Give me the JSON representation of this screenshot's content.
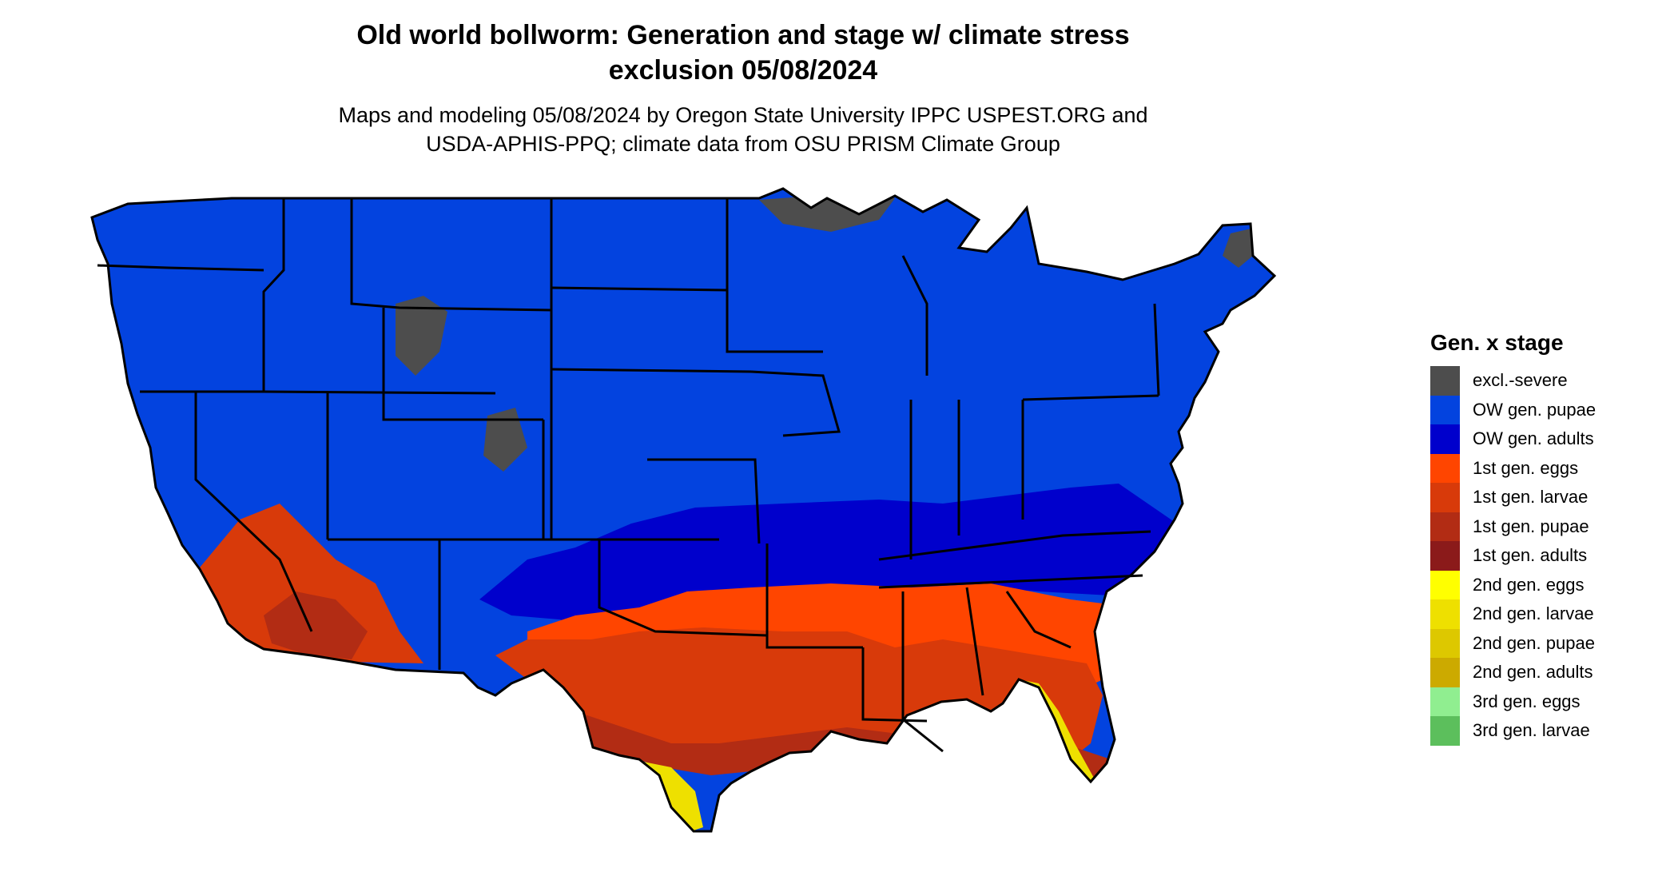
{
  "title": {
    "line1": "Old world bollworm: Generation and stage w/ climate stress",
    "line2": "exclusion 05/08/2024"
  },
  "subtitle": {
    "line1": "Maps and modeling 05/08/2024 by Oregon State University IPPC USPEST.ORG and",
    "line2": "USDA-APHIS-PPQ; climate data from OSU PRISM Climate Group"
  },
  "legend": {
    "title": "Gen. x stage",
    "items": [
      {
        "label": "excl.-severe",
        "color": "#4d4d4d"
      },
      {
        "label": "OW gen. pupae",
        "color": "#0343df"
      },
      {
        "label": "OW gen. adults",
        "color": "#0000cc"
      },
      {
        "label": "1st gen. eggs",
        "color": "#ff4500"
      },
      {
        "label": "1st gen. larvae",
        "color": "#d83a0a"
      },
      {
        "label": "1st gen. pupae",
        "color": "#b22c14"
      },
      {
        "label": "1st gen. adults",
        "color": "#8b1a1a"
      },
      {
        "label": "2nd gen. eggs",
        "color": "#ffff00"
      },
      {
        "label": "2nd gen. larvae",
        "color": "#eee000"
      },
      {
        "label": "2nd gen. pupae",
        "color": "#ddc800"
      },
      {
        "label": "2nd gen. adults",
        "color": "#ccaa00"
      },
      {
        "label": "3rd gen. eggs",
        "color": "#90ee90"
      },
      {
        "label": "3rd gen. larvae",
        "color": "#5cbf5c"
      }
    ]
  }
}
